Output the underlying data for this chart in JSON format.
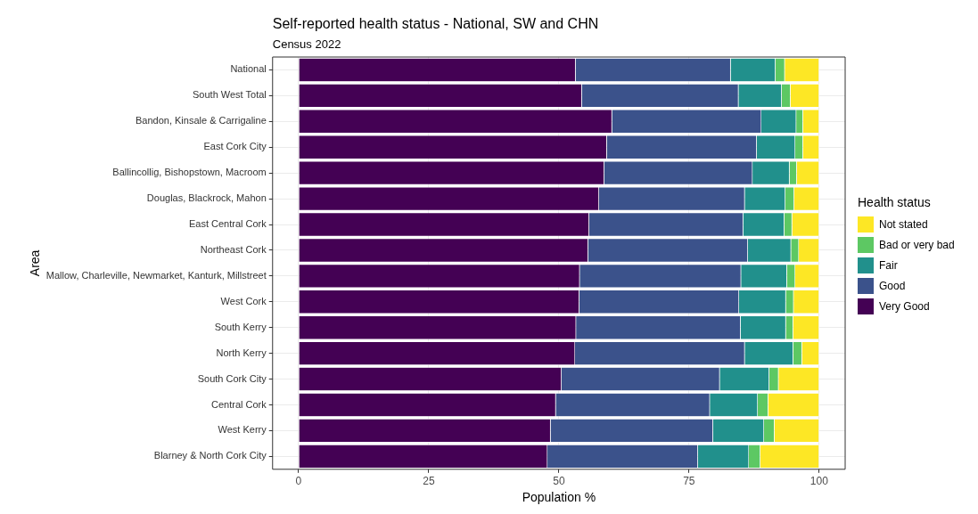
{
  "chart_data": {
    "type": "bar",
    "orientation": "horizontal",
    "stacked": true,
    "title": "Self-reported health status - National, SW and CHN",
    "subtitle": "Census 2022",
    "xlabel": "Population %",
    "ylabel": "Area",
    "legend_title": "Health status",
    "legend": "right",
    "grid": true,
    "categories": [
      "National",
      "South West Total",
      "Bandon, Kinsale & Carrigaline",
      "East Cork City",
      "Ballincollig, Bishopstown, Macroom",
      "Douglas, Blackrock, Mahon",
      "East Central Cork",
      "Northeast Cork",
      "Mallow, Charleville, Newmarket, Kanturk, Millstreet",
      "West Cork",
      "South Kerry",
      "North Kerry",
      "South Cork City",
      "Central Cork",
      "West Kerry",
      "Blarney & North Cork City"
    ],
    "xlim": [
      -5,
      105
    ],
    "xticks": [
      0,
      25,
      50,
      75,
      100
    ],
    "series": [
      {
        "name": "Very Good",
        "color": "#440154",
        "values": [
          53.2,
          54.4,
          60.2,
          59.2,
          58.7,
          57.7,
          55.8,
          55.6,
          54.0,
          53.9,
          53.3,
          53.1,
          50.5,
          49.4,
          48.4,
          47.8
        ]
      },
      {
        "name": "Good",
        "color": "#3b528b",
        "values": [
          29.8,
          30.1,
          28.7,
          28.8,
          28.5,
          28.0,
          29.6,
          30.7,
          31.0,
          30.7,
          31.6,
          32.6,
          30.4,
          29.6,
          31.2,
          28.9
        ]
      },
      {
        "name": "Fair",
        "color": "#21908c",
        "values": [
          8.6,
          8.3,
          6.7,
          7.4,
          7.1,
          7.8,
          7.9,
          8.3,
          8.8,
          9.0,
          8.7,
          9.3,
          9.5,
          9.2,
          9.8,
          9.8
        ]
      },
      {
        "name": "Bad or very bad",
        "color": "#5dc863",
        "values": [
          1.8,
          1.7,
          1.3,
          1.5,
          1.4,
          1.7,
          1.5,
          1.5,
          1.6,
          1.5,
          1.4,
          1.7,
          1.8,
          2.0,
          2.0,
          2.2
        ]
      },
      {
        "name": "Not stated",
        "color": "#fde725",
        "values": [
          6.6,
          5.5,
          3.1,
          3.1,
          4.3,
          4.8,
          5.2,
          3.9,
          4.6,
          4.9,
          5.0,
          3.3,
          7.8,
          9.8,
          8.6,
          11.3
        ]
      }
    ]
  }
}
